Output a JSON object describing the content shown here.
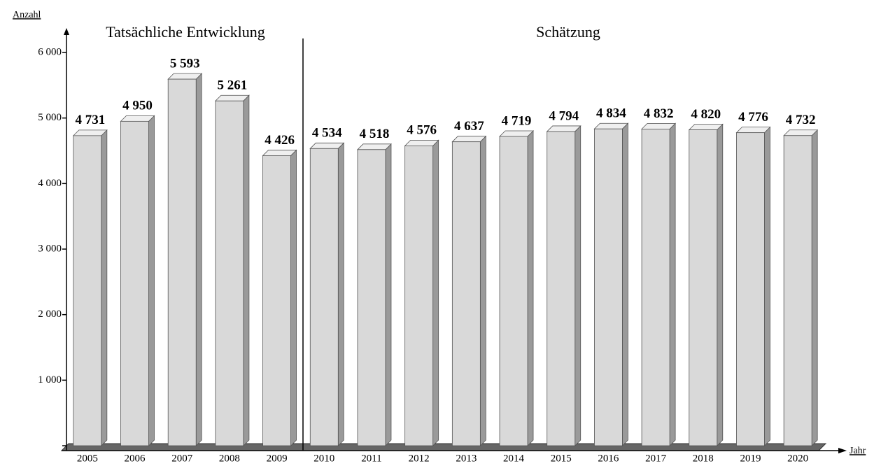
{
  "chart_data": {
    "type": "bar3d",
    "y_label": "Anzahl",
    "x_label": "Jahr",
    "annotations": [
      "Tatsächliche Entwicklung",
      "Schätzung"
    ],
    "categories": [
      "2005",
      "2006",
      "2007",
      "2008",
      "2009",
      "2010",
      "2011",
      "2012",
      "2013",
      "2014",
      "2015",
      "2016",
      "2017",
      "2018",
      "2019",
      "2020"
    ],
    "values": [
      4731,
      4950,
      5593,
      5261,
      4426,
      4534,
      4518,
      4576,
      4637,
      4719,
      4794,
      4834,
      4832,
      4820,
      4776,
      4732
    ],
    "value_labels": [
      "4 731",
      "4 950",
      "5 593",
      "5 261",
      "4 426",
      "4 534",
      "4 518",
      "4 576",
      "4 637",
      "4 719",
      "4 794",
      "4 834",
      "4 832",
      "4 820",
      "4 776",
      "4 732"
    ],
    "color": "#d9d9d9",
    "ylim": [
      0,
      6000
    ],
    "yticks": [
      0,
      {
        "value": 1000,
        "label": "1 000"
      },
      {
        "value": 2000,
        "label": "2 000"
      },
      {
        "value": 3000,
        "label": "3 000"
      },
      {
        "value": 4000,
        "label": "4 000"
      },
      {
        "value": 5000,
        "label": "5 000"
      },
      {
        "value": 6000,
        "label": "6 000"
      }
    ]
  }
}
